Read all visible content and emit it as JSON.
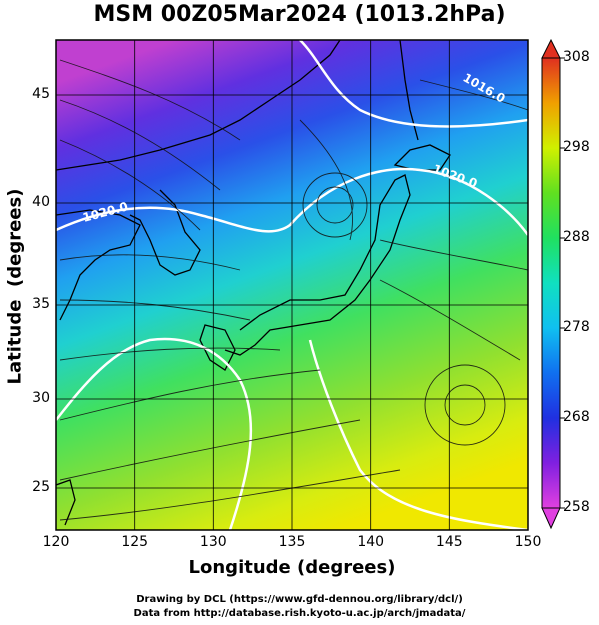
{
  "title": "MSM 00Z05Mar2024 (1013.2hPa)",
  "x_axis": {
    "label": "Longitude (degrees)",
    "ticks": [
      "120",
      "125",
      "130",
      "135",
      "140",
      "145",
      "150"
    ]
  },
  "y_axis": {
    "label": "Latitude  (degrees)",
    "ticks": [
      "25",
      "30",
      "35",
      "40",
      "45"
    ]
  },
  "colorbar": {
    "ticks": [
      "258",
      "268",
      "278",
      "288",
      "298",
      "308"
    ],
    "colors": [
      "#e040e0",
      "#8020e0",
      "#2030e0",
      "#1070f0",
      "#10d0e0",
      "#20e080",
      "#30d030",
      "#a0e020",
      "#f0f000",
      "#f0a000",
      "#e03020"
    ]
  },
  "map_data": {
    "lon_range": [
      120,
      150
    ],
    "lat_range": [
      22.5,
      47.5
    ],
    "field": "temperature (K)",
    "isobar_labels": [
      "1016.0",
      "1020.0",
      "1020.0"
    ]
  },
  "credits": {
    "line1": "Drawing by DCL (https://www.gfd-dennou.org/library/dcl/)",
    "line2": "Data from http://database.rish.kyoto-u.ac.jp/arch/jmadata/"
  }
}
